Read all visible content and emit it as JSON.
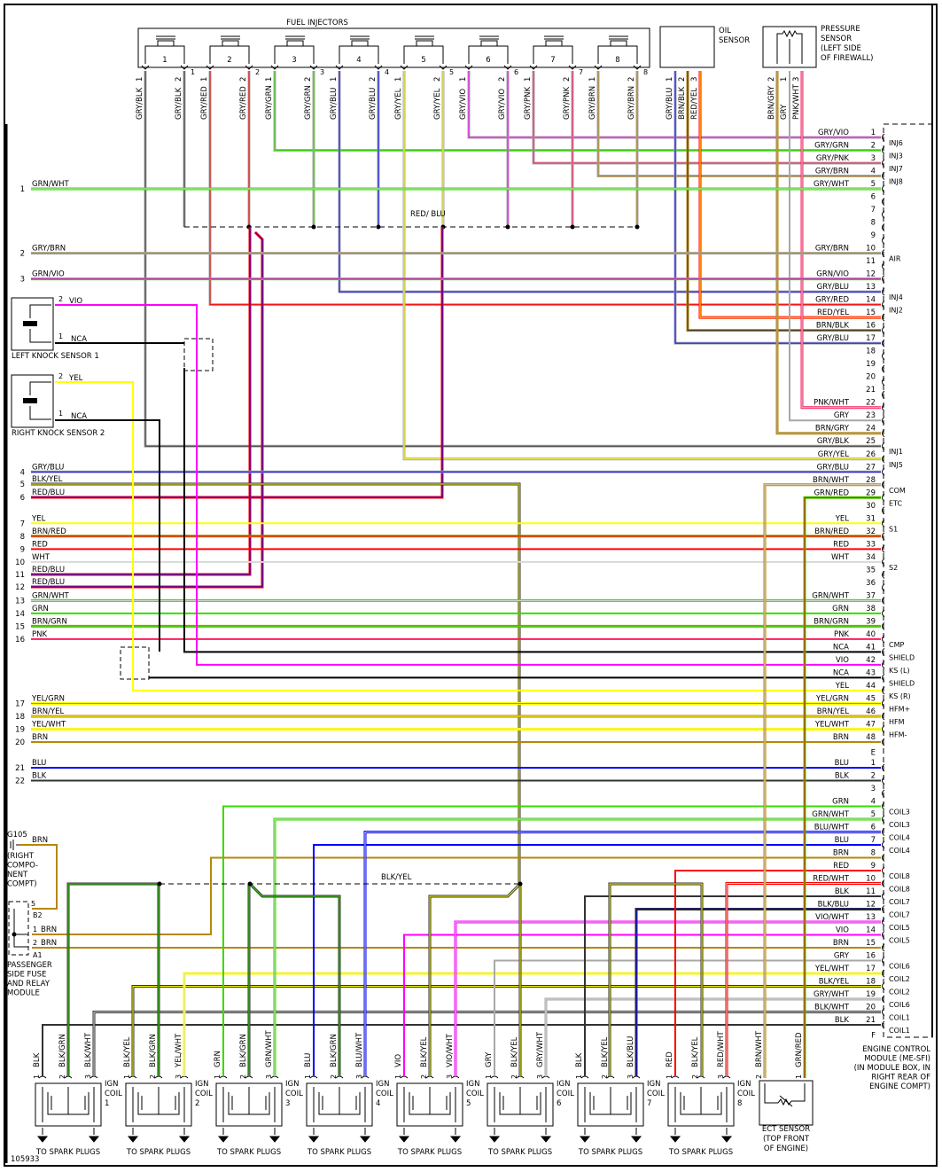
{
  "figure_id": "105933",
  "colors": {
    "GRY": "#a8a8a8",
    "GRN": "#33dd00",
    "BRN": "#b8860b",
    "BLU": "#0000ff",
    "RED": "#ff0000",
    "VIO": "#ff00ff",
    "YEL": "#ffff00",
    "BLK": "#333333",
    "PNK": "#ff1a5e",
    "WHT": "#d8d8d8",
    "NCA": "#000000"
  },
  "injectors": {
    "title": "FUEL INJECTORS",
    "items": [
      {
        "n": "1",
        "wires": [
          {
            "label": "GRY/BLK",
            "pin": "1"
          },
          {
            "label": "GRY/BLK",
            "pin": "2"
          }
        ]
      },
      {
        "n": "2",
        "wires": [
          {
            "label": "GRY/RED",
            "pin": "1"
          },
          {
            "label": "GRY/RED",
            "pin": "2"
          }
        ]
      },
      {
        "n": "3",
        "wires": [
          {
            "label": "GRY/GRN",
            "pin": "1"
          },
          {
            "label": "GRY/GRN",
            "pin": "2"
          }
        ]
      },
      {
        "n": "4",
        "wires": [
          {
            "label": "GRY/BLU",
            "pin": "1"
          },
          {
            "label": "GRY/BLU",
            "pin": "2"
          }
        ]
      },
      {
        "n": "5",
        "wires": [
          {
            "label": "GRY/YEL",
            "pin": "1"
          },
          {
            "label": "GRY/YEL",
            "pin": "2"
          }
        ]
      },
      {
        "n": "6",
        "wires": [
          {
            "label": "GRY/VIO",
            "pin": "1"
          },
          {
            "label": "GRY/VIO",
            "pin": "2"
          }
        ]
      },
      {
        "n": "7",
        "wires": [
          {
            "label": "GRY/PNK",
            "pin": "1"
          },
          {
            "label": "GRY/PNK",
            "pin": "2"
          }
        ]
      },
      {
        "n": "8",
        "wires": [
          {
            "label": "GRY/BRN",
            "pin": "1"
          },
          {
            "label": "GRY/BRN",
            "pin": "2"
          }
        ]
      }
    ],
    "splice_label": "RED/ BLU"
  },
  "oil_sensor": {
    "title_lines": [
      "OIL",
      "SENSOR"
    ],
    "wires": [
      {
        "label": "GRY/BLU",
        "pin": "1"
      },
      {
        "label": "BRN/BLK",
        "pin": "2"
      },
      {
        "label": "RED/YEL",
        "pin": "3"
      }
    ]
  },
  "pressure_sensor": {
    "title_lines": [
      "PRESSURE",
      "SENSOR",
      "(LEFT SIDE",
      "OF FIREWALL)"
    ],
    "wires": [
      {
        "label": "BRN/GRY",
        "pin": "2"
      },
      {
        "label": "GRY",
        "pin": "1"
      },
      {
        "label": "PNK/WHT",
        "pin": "3"
      }
    ]
  },
  "left_wires": [
    {
      "num": "1",
      "label": "GRN/WHT"
    },
    {
      "num": "2",
      "label": "GRY/BRN"
    },
    {
      "num": "3",
      "label": "GRN/VIO"
    },
    {
      "num": "4",
      "label": "GRY/BLU"
    },
    {
      "num": "5",
      "label": "BLK/YEL"
    },
    {
      "num": "6",
      "label": "RED/BLU"
    },
    {
      "num": "7",
      "label": "YEL"
    },
    {
      "num": "8",
      "label": "BRN/RED"
    },
    {
      "num": "9",
      "label": "RED"
    },
    {
      "num": "10",
      "label": "WHT"
    },
    {
      "num": "11",
      "label": "RED/BLU"
    },
    {
      "num": "12",
      "label": "RED/BLU"
    },
    {
      "num": "13",
      "label": "GRN/WHT"
    },
    {
      "num": "14",
      "label": "GRN"
    },
    {
      "num": "15",
      "label": "BRN/GRN"
    },
    {
      "num": "16",
      "label": "PNK"
    },
    {
      "num": "17",
      "label": "YEL/GRN"
    },
    {
      "num": "18",
      "label": "BRN/YEL"
    },
    {
      "num": "19",
      "label": "YEL/WHT"
    },
    {
      "num": "20",
      "label": "BRN"
    },
    {
      "num": "21",
      "label": "BLU"
    },
    {
      "num": "22",
      "label": "BLK"
    }
  ],
  "knock_sensors": [
    {
      "name": "LEFT KNOCK SENSOR 1",
      "wires": [
        {
          "pin": "2",
          "label": "VIO"
        },
        {
          "pin": "1",
          "label": "NCA"
        }
      ]
    },
    {
      "name": "RIGHT KNOCK SENSOR 2",
      "wires": [
        {
          "pin": "2",
          "label": "YEL"
        },
        {
          "pin": "1",
          "label": "NCA"
        }
      ]
    }
  ],
  "ground": {
    "id": "G105",
    "wire": "BRN",
    "location_lines": [
      "(RIGHT",
      "COMPO-",
      "NENT",
      "COMPT)"
    ]
  },
  "fuse_module": {
    "pins": [
      {
        "pin": "5",
        "label": ""
      },
      {
        "pin": "1",
        "label": "BRN"
      },
      {
        "pin": "2",
        "label": "BRN"
      }
    ],
    "connectors": [
      "B2",
      "A1"
    ],
    "name_lines": [
      "PASSENGER",
      "SIDE FUSE",
      "AND RELAY",
      "MODULE"
    ]
  },
  "ecm": {
    "name_lines": [
      "ENGINE CONTROL",
      "MODULE (ME-SFI)",
      "(IN MODULE BOX, IN",
      "RIGHT REAR OF",
      "ENGINE COMPT)"
    ],
    "connector_a_end": "E",
    "connector_f_end": "F",
    "pins_a": [
      {
        "pin": "1",
        "wire": "GRY/VIO",
        "func": "INJ6"
      },
      {
        "pin": "2",
        "wire": "GRY/GRN",
        "func": "INJ3"
      },
      {
        "pin": "3",
        "wire": "GRY/PNK",
        "func": "INJ7"
      },
      {
        "pin": "4",
        "wire": "GRY/BRN",
        "func": "INJ8"
      },
      {
        "pin": "5",
        "wire": "GRY/WHT",
        "func": ""
      },
      {
        "pin": "6",
        "wire": "",
        "func": ""
      },
      {
        "pin": "7",
        "wire": "",
        "func": ""
      },
      {
        "pin": "8",
        "wire": "",
        "func": ""
      },
      {
        "pin": "9",
        "wire": "",
        "func": ""
      },
      {
        "pin": "10",
        "wire": "GRY/BRN",
        "func": "AIR"
      },
      {
        "pin": "11",
        "wire": "",
        "func": ""
      },
      {
        "pin": "12",
        "wire": "GRN/VIO",
        "func": ""
      },
      {
        "pin": "13",
        "wire": "GRY/BLU",
        "func": "INJ4"
      },
      {
        "pin": "14",
        "wire": "GRY/RED",
        "func": "INJ2"
      },
      {
        "pin": "15",
        "wire": "RED/YEL",
        "func": ""
      },
      {
        "pin": "16",
        "wire": "BRN/BLK",
        "func": ""
      },
      {
        "pin": "17",
        "wire": "GRY/BLU",
        "func": ""
      },
      {
        "pin": "18",
        "wire": "",
        "func": ""
      },
      {
        "pin": "19",
        "wire": "",
        "func": ""
      },
      {
        "pin": "20",
        "wire": "",
        "func": ""
      },
      {
        "pin": "21",
        "wire": "",
        "func": ""
      },
      {
        "pin": "22",
        "wire": "PNK/WHT",
        "func": ""
      },
      {
        "pin": "23",
        "wire": "GRY",
        "func": ""
      },
      {
        "pin": "24",
        "wire": "BRN/GRY",
        "func": ""
      },
      {
        "pin": "25",
        "wire": "GRY/BLK",
        "func": "INJ1"
      },
      {
        "pin": "26",
        "wire": "GRY/YEL",
        "func": "INJ5"
      },
      {
        "pin": "27",
        "wire": "GRY/BLU",
        "func": ""
      },
      {
        "pin": "28",
        "wire": "BRN/WHT",
        "func": "COM"
      },
      {
        "pin": "29",
        "wire": "GRN/RED",
        "func": "ETC"
      },
      {
        "pin": "30",
        "wire": "",
        "func": ""
      },
      {
        "pin": "31",
        "wire": "YEL",
        "func": "S1"
      },
      {
        "pin": "32",
        "wire": "BRN/RED",
        "func": ""
      },
      {
        "pin": "33",
        "wire": "RED",
        "func": ""
      },
      {
        "pin": "34",
        "wire": "WHT",
        "func": "S2"
      },
      {
        "pin": "35",
        "wire": "",
        "func": ""
      },
      {
        "pin": "36",
        "wire": "",
        "func": ""
      },
      {
        "pin": "37",
        "wire": "GRN/WHT",
        "func": ""
      },
      {
        "pin": "38",
        "wire": "GRN",
        "func": ""
      },
      {
        "pin": "39",
        "wire": "BRN/GRN",
        "func": ""
      },
      {
        "pin": "40",
        "wire": "PNK",
        "func": "CMP"
      },
      {
        "pin": "41",
        "wire": "NCA",
        "func": "SHIELD"
      },
      {
        "pin": "42",
        "wire": "VIO",
        "func": "KS (L)"
      },
      {
        "pin": "43",
        "wire": "NCA",
        "func": "SHIELD"
      },
      {
        "pin": "44",
        "wire": "YEL",
        "func": "KS (R)"
      },
      {
        "pin": "45",
        "wire": "YEL/GRN",
        "func": "HFM+"
      },
      {
        "pin": "46",
        "wire": "BRN/YEL",
        "func": "HFM"
      },
      {
        "pin": "47",
        "wire": "YEL/WHT",
        "func": "HFM-"
      },
      {
        "pin": "48",
        "wire": "BRN",
        "func": ""
      }
    ],
    "pins_f": [
      {
        "pin": "1",
        "wire": "BLU",
        "func": ""
      },
      {
        "pin": "2",
        "wire": "BLK",
        "func": ""
      },
      {
        "pin": "3",
        "wire": "",
        "func": ""
      },
      {
        "pin": "4",
        "wire": "GRN",
        "func": "COIL3"
      },
      {
        "pin": "5",
        "wire": "GRN/WHT",
        "func": "COIL3"
      },
      {
        "pin": "6",
        "wire": "BLU/WHT",
        "func": "COIL4"
      },
      {
        "pin": "7",
        "wire": "BLU",
        "func": "COIL4"
      },
      {
        "pin": "8",
        "wire": "BRN",
        "func": ""
      },
      {
        "pin": "9",
        "wire": "RED",
        "func": "COIL8"
      },
      {
        "pin": "10",
        "wire": "RED/WHT",
        "func": "COIL8"
      },
      {
        "pin": "11",
        "wire": "BLK",
        "func": "COIL7"
      },
      {
        "pin": "12",
        "wire": "BLK/BLU",
        "func": "COIL7"
      },
      {
        "pin": "13",
        "wire": "VIO/WHT",
        "func": "COIL5"
      },
      {
        "pin": "14",
        "wire": "VIO",
        "func": "COIL5"
      },
      {
        "pin": "15",
        "wire": "BRN",
        "func": ""
      },
      {
        "pin": "16",
        "wire": "GRY",
        "func": "COIL6"
      },
      {
        "pin": "17",
        "wire": "YEL/WHT",
        "func": "COIL2"
      },
      {
        "pin": "18",
        "wire": "BLK/YEL",
        "func": "COIL2"
      },
      {
        "pin": "19",
        "wire": "GRY/WHT",
        "func": "COIL6"
      },
      {
        "pin": "20",
        "wire": "BLK/WHT",
        "func": "COIL1"
      },
      {
        "pin": "21",
        "wire": "BLK",
        "func": "COIL1"
      }
    ]
  },
  "bus_label": "BLK/YEL",
  "coils": {
    "label_lines": [
      "IGN",
      "COIL"
    ],
    "output_label": "TO SPARK PLUGS",
    "items": [
      {
        "n": "1",
        "wires": [
          {
            "pin": "1",
            "label": "BLK"
          },
          {
            "pin": "2",
            "label": "BLK/GRN"
          },
          {
            "pin": "3",
            "label": "BLK/WHT"
          }
        ]
      },
      {
        "n": "2",
        "wires": [
          {
            "pin": "1",
            "label": "BLK/YEL"
          },
          {
            "pin": "2",
            "label": "BLK/GRN"
          },
          {
            "pin": "3",
            "label": "YEL/WHT"
          }
        ]
      },
      {
        "n": "3",
        "wires": [
          {
            "pin": "1",
            "label": "GRN"
          },
          {
            "pin": "2",
            "label": "BLK/GRN"
          },
          {
            "pin": "3",
            "label": "GRN/WHT"
          }
        ]
      },
      {
        "n": "4",
        "wires": [
          {
            "pin": "1",
            "label": "BLU"
          },
          {
            "pin": "2",
            "label": "BLK/GRN"
          },
          {
            "pin": "3",
            "label": "BLU/WHT"
          }
        ]
      },
      {
        "n": "5",
        "wires": [
          {
            "pin": "1",
            "label": "VIO"
          },
          {
            "pin": "2",
            "label": "BLK/YEL"
          },
          {
            "pin": "3",
            "label": "VIO/WHT"
          }
        ]
      },
      {
        "n": "6",
        "wires": [
          {
            "pin": "1",
            "label": "GRY"
          },
          {
            "pin": "2",
            "label": "BLK/YEL"
          },
          {
            "pin": "3",
            "label": "GRY/WHT"
          }
        ]
      },
      {
        "n": "7",
        "wires": [
          {
            "pin": "1",
            "label": "BLK"
          },
          {
            "pin": "2",
            "label": "BLK/YEL"
          },
          {
            "pin": "3",
            "label": "BLK/BLU"
          }
        ]
      },
      {
        "n": "8",
        "wires": [
          {
            "pin": "1",
            "label": "RED"
          },
          {
            "pin": "2",
            "label": "BLK/YEL"
          },
          {
            "pin": "3",
            "label": "RED/WHT"
          }
        ]
      }
    ]
  },
  "ect_sensor": {
    "name_lines": [
      "ECT SENSOR",
      "(TOP FRONT",
      "OF ENGINE)"
    ],
    "wires": [
      {
        "pin": "2",
        "label": "BRN/WHT"
      },
      {
        "pin": "1",
        "label": "GRN/RED"
      }
    ]
  }
}
